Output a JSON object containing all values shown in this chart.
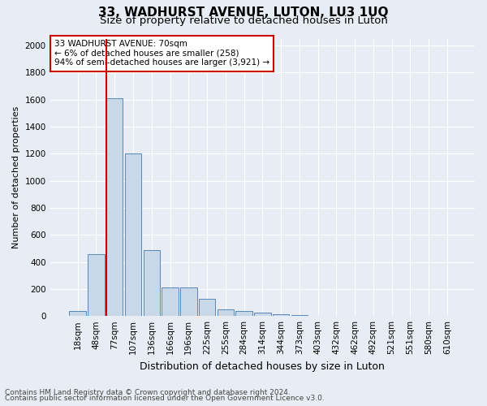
{
  "title": "33, WADHURST AVENUE, LUTON, LU3 1UQ",
  "subtitle": "Size of property relative to detached houses in Luton",
  "xlabel": "Distribution of detached houses by size in Luton",
  "ylabel": "Number of detached properties",
  "footer_line1": "Contains HM Land Registry data © Crown copyright and database right 2024.",
  "footer_line2": "Contains public sector information licensed under the Open Government Licence v3.0.",
  "bar_labels": [
    "18sqm",
    "48sqm",
    "77sqm",
    "107sqm",
    "136sqm",
    "166sqm",
    "196sqm",
    "225sqm",
    "255sqm",
    "284sqm",
    "314sqm",
    "344sqm",
    "373sqm",
    "403sqm",
    "432sqm",
    "462sqm",
    "492sqm",
    "521sqm",
    "551sqm",
    "580sqm",
    "610sqm"
  ],
  "bar_values": [
    35,
    455,
    1610,
    1200,
    490,
    210,
    210,
    125,
    50,
    40,
    25,
    15,
    5,
    3,
    2,
    2,
    1,
    1,
    1,
    1,
    1
  ],
  "bar_color": "#c8d8e8",
  "bar_edgecolor": "#5588bb",
  "highlight_index": 2,
  "highlight_color": "#cc0000",
  "annotation_text": "33 WADHURST AVENUE: 70sqm\n← 6% of detached houses are smaller (258)\n94% of semi-detached houses are larger (3,921) →",
  "annotation_box_color": "#ffffff",
  "annotation_box_edgecolor": "#cc0000",
  "ylim": [
    0,
    2050
  ],
  "yticks": [
    0,
    200,
    400,
    600,
    800,
    1000,
    1200,
    1400,
    1600,
    1800,
    2000
  ],
  "bg_color": "#e8edf5",
  "plot_bg_color": "#e8edf5",
  "grid_color": "#ffffff",
  "title_fontsize": 11,
  "subtitle_fontsize": 9.5,
  "xlabel_fontsize": 9,
  "ylabel_fontsize": 8,
  "tick_fontsize": 7.5,
  "footer_fontsize": 6.5
}
